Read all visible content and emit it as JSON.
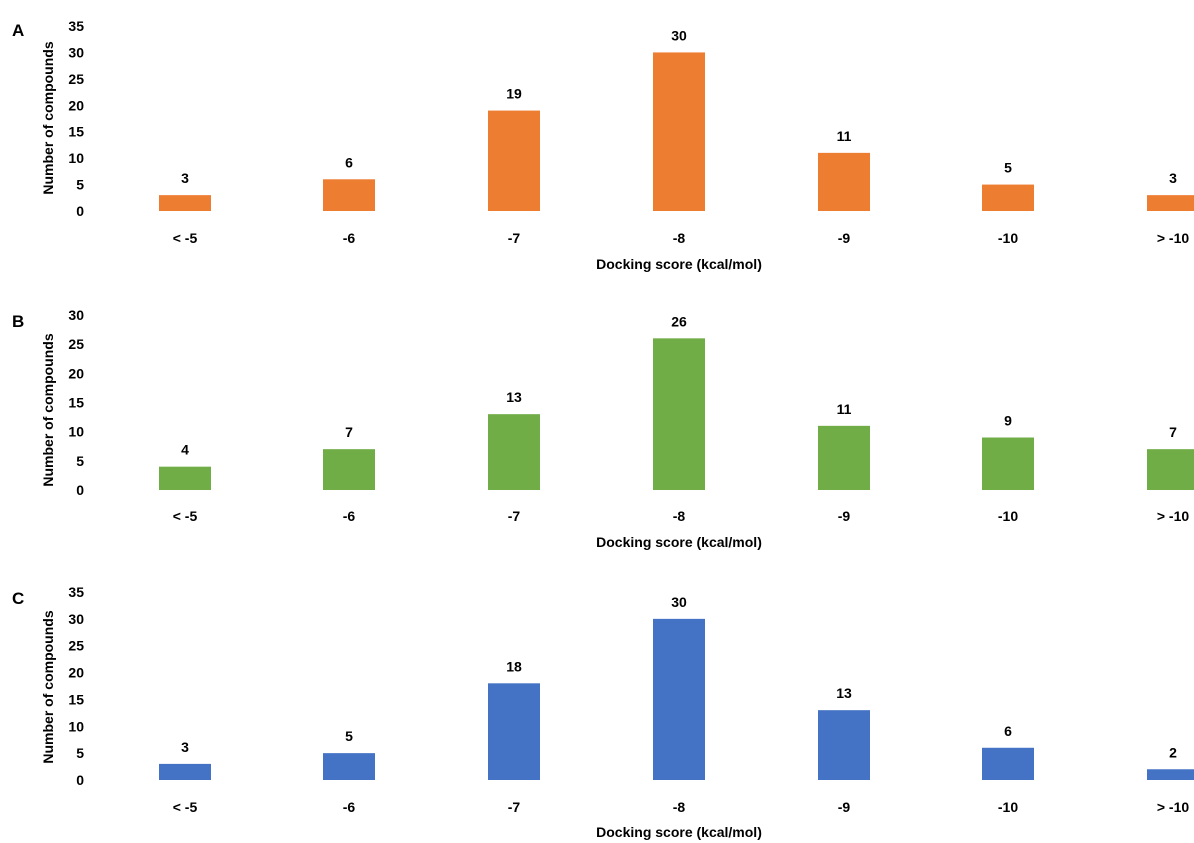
{
  "chart_data": [
    {
      "type": "bar",
      "panel": "A",
      "categories": [
        "< -5",
        "-6",
        "-7",
        "-8",
        "-9",
        "-10",
        "> -10"
      ],
      "values": [
        3,
        6,
        19,
        30,
        11,
        5,
        3
      ],
      "xlabel": "Docking score (kcal/mol)",
      "ylabel": "Number of compounds",
      "ylim": [
        0,
        35
      ],
      "yticks": [
        0,
        5,
        10,
        15,
        20,
        25,
        30,
        35
      ],
      "color": "#ED7D31",
      "grid": false
    },
    {
      "type": "bar",
      "panel": "B",
      "categories": [
        "< -5",
        "-6",
        "-7",
        "-8",
        "-9",
        "-10",
        "> -10"
      ],
      "values": [
        4,
        7,
        13,
        26,
        11,
        9,
        7
      ],
      "xlabel": "Docking score (kcal/mol)",
      "ylabel": "Number of compounds",
      "ylim": [
        0,
        30
      ],
      "yticks": [
        0,
        5,
        10,
        15,
        20,
        25,
        30
      ],
      "color": "#70AD47",
      "grid": false
    },
    {
      "type": "bar",
      "panel": "C",
      "categories": [
        "< -5",
        "-6",
        "-7",
        "-8",
        "-9",
        "-10",
        "> -10"
      ],
      "values": [
        3,
        5,
        18,
        30,
        13,
        6,
        2
      ],
      "xlabel": "Docking score (kcal/mol)",
      "ylabel": "Number of compounds",
      "ylim": [
        0,
        35
      ],
      "yticks": [
        0,
        5,
        10,
        15,
        20,
        25,
        30,
        35
      ],
      "color": "#4472C4",
      "grid": false
    }
  ]
}
